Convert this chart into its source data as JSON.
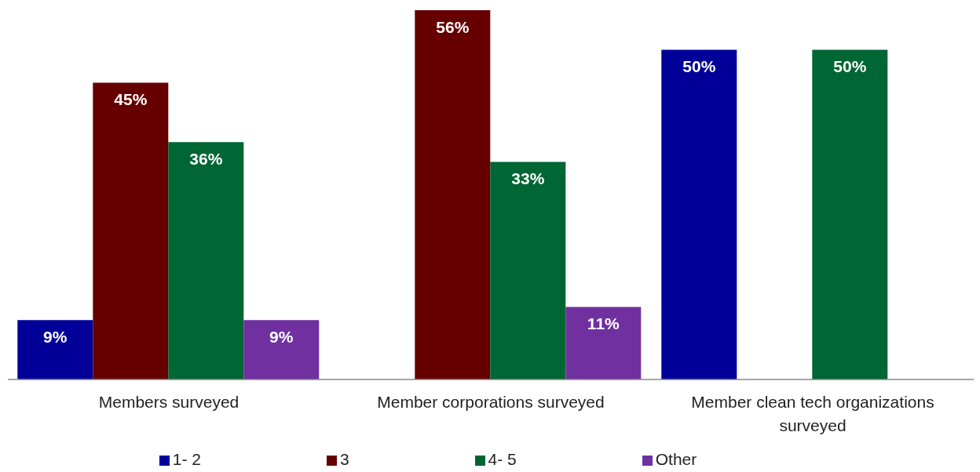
{
  "chart_data": {
    "type": "bar",
    "categories": [
      "Members surveyed",
      "Member corporations surveyed",
      "Member clean tech organizations surveyed"
    ],
    "series": [
      {
        "name": "1- 2",
        "color": "#000099",
        "values": [
          9,
          null,
          50
        ],
        "value_labels": [
          "9%",
          null,
          "50%"
        ]
      },
      {
        "name": "3",
        "color": "#660000",
        "values": [
          45,
          56,
          null
        ],
        "value_labels": [
          "45%",
          "56%",
          null
        ]
      },
      {
        "name": "4- 5",
        "color": "#006633",
        "values": [
          36,
          33,
          50
        ],
        "value_labels": [
          "36%",
          "33%",
          "50%"
        ]
      },
      {
        "name": "Other",
        "color": "#7030a0",
        "values": [
          9,
          11,
          null
        ],
        "value_labels": [
          "9%",
          "11%",
          null
        ]
      }
    ],
    "legend": "bottom",
    "grid": false
  }
}
